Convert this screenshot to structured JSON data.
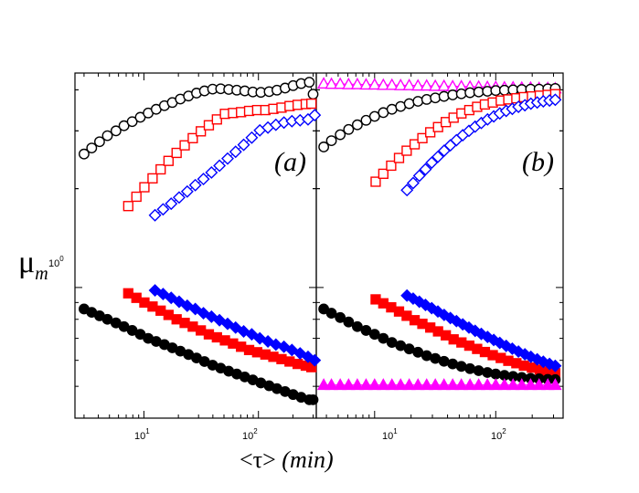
{
  "chart_data": {
    "type": "scatter",
    "y_axis": {
      "scale": "log",
      "ylim": [
        0.4,
        4.5
      ],
      "label_symbol": "μ",
      "label_subscript": "m",
      "tick_label_base": "10",
      "tick_label_exp": "0",
      "tick_value": 1
    },
    "x_axis": {
      "scale": "log",
      "label_open": "<τ>",
      "label_unit": "(min)",
      "tick_label_base": "10",
      "tick_label_exp_1": "1",
      "tick_label_exp_2": "2"
    },
    "panels": [
      {
        "id": "a",
        "label": "(a)",
        "xlim": [
          2.5,
          320
        ],
        "series": [
          {
            "name": "black-open",
            "color": "#000000",
            "marker": "circle",
            "filled": false,
            "line": true,
            "x": [
              3.0,
              3.5,
              4.1,
              4.8,
              5.7,
              6.7,
              7.9,
              9.3,
              10.9,
              12.8,
              15.1,
              17.7,
              20.8,
              24.5,
              28.8,
              33.8,
              39.8,
              46.8,
              55.0,
              64.7,
              76.0,
              89.4,
              105,
              124,
              145,
              171,
              201,
              236,
              278,
              300
            ],
            "y": [
              2.55,
              2.66,
              2.78,
              2.9,
              3.0,
              3.11,
              3.2,
              3.3,
              3.4,
              3.49,
              3.58,
              3.66,
              3.75,
              3.83,
              3.91,
              3.97,
              4.02,
              4.03,
              4.01,
              3.99,
              3.97,
              3.94,
              3.93,
              3.95,
              3.99,
              4.05,
              4.12,
              4.18,
              4.22,
              3.88
            ]
          },
          {
            "name": "red-open",
            "color": "#ff0000",
            "marker": "square",
            "filled": false,
            "line": true,
            "x": [
              7.3,
              8.6,
              10.1,
              11.9,
              14.0,
              16.4,
              19.3,
              22.7,
              26.7,
              31.4,
              36.9,
              43.4,
              51.0,
              60.0,
              70.5,
              82.9,
              97.5,
              115,
              135,
              159,
              187,
              220,
              259,
              290
            ],
            "y": [
              1.77,
              1.89,
              2.02,
              2.15,
              2.29,
              2.43,
              2.57,
              2.71,
              2.85,
              2.99,
              3.12,
              3.25,
              3.38,
              3.4,
              3.42,
              3.45,
              3.47,
              3.47,
              3.5,
              3.53,
              3.57,
              3.6,
              3.62,
              3.63
            ]
          },
          {
            "name": "blue-open",
            "color": "#0000ff",
            "marker": "diamond",
            "filled": false,
            "line": true,
            "x": [
              12.5,
              14.7,
              17.3,
              20.3,
              23.9,
              28.1,
              33.1,
              38.9,
              45.7,
              53.8,
              63.2,
              74.3,
              87.4,
              102.8,
              121,
              142,
              167,
              196,
              231,
              271,
              310
            ],
            "y": [
              1.66,
              1.73,
              1.8,
              1.88,
              1.96,
              2.05,
              2.14,
              2.24,
              2.35,
              2.47,
              2.59,
              2.72,
              2.86,
              3.01,
              3.07,
              3.13,
              3.18,
              3.21,
              3.23,
              3.25,
              3.35
            ]
          },
          {
            "name": "red-filled",
            "color": "#ff0000",
            "marker": "square",
            "filled": true,
            "line": true,
            "x": [
              7.3,
              8.6,
              10.1,
              11.9,
              14.0,
              16.4,
              19.3,
              22.7,
              26.7,
              31.4,
              36.9,
              43.4,
              51.0,
              60.0,
              70.5,
              82.9,
              97.5,
              115,
              135,
              159,
              187,
              220,
              259,
              290
            ],
            "y": [
              0.96,
              0.93,
              0.9,
              0.875,
              0.85,
              0.825,
              0.8,
              0.78,
              0.76,
              0.74,
              0.72,
              0.705,
              0.69,
              0.675,
              0.66,
              0.645,
              0.635,
              0.625,
              0.615,
              0.605,
              0.595,
              0.585,
              0.578,
              0.572
            ]
          },
          {
            "name": "blue-filled",
            "color": "#0000ff",
            "marker": "diamond",
            "filled": true,
            "line": true,
            "x": [
              12.5,
              14.7,
              17.3,
              20.3,
              23.9,
              28.1,
              33.1,
              38.9,
              45.7,
              53.8,
              63.2,
              74.3,
              87.4,
              102.8,
              121,
              142,
              167,
              196,
              231,
              271,
              310
            ],
            "y": [
              0.98,
              0.955,
              0.93,
              0.905,
              0.88,
              0.86,
              0.835,
              0.815,
              0.795,
              0.775,
              0.755,
              0.735,
              0.72,
              0.7,
              0.685,
              0.67,
              0.66,
              0.645,
              0.63,
              0.615,
              0.6
            ]
          },
          {
            "name": "black-filled",
            "color": "#000000",
            "marker": "circle",
            "filled": true,
            "line": true,
            "x": [
              3.0,
              3.5,
              4.1,
              4.8,
              5.7,
              6.7,
              7.9,
              9.3,
              10.9,
              12.8,
              15.1,
              17.7,
              20.8,
              24.5,
              28.8,
              33.8,
              39.8,
              46.8,
              55.0,
              64.7,
              76.0,
              89.4,
              105,
              124,
              145,
              171,
              201,
              236,
              278,
              300
            ],
            "y": [
              0.86,
              0.84,
              0.82,
              0.8,
              0.78,
              0.76,
              0.74,
              0.72,
              0.7,
              0.685,
              0.67,
              0.655,
              0.64,
              0.625,
              0.61,
              0.595,
              0.58,
              0.568,
              0.556,
              0.545,
              0.534,
              0.523,
              0.512,
              0.502,
              0.492,
              0.482,
              0.472,
              0.463,
              0.455,
              0.455
            ]
          }
        ]
      },
      {
        "id": "b",
        "label": "(b)",
        "xlim": [
          3.3,
          360
        ],
        "series": [
          {
            "name": "magenta-open",
            "color": "#ff00ff",
            "marker": "triangle",
            "filled": false,
            "line": true,
            "x": [
              3.8,
              4.4,
              5.2,
              6.1,
              7.2,
              8.5,
              10.0,
              11.8,
              13.9,
              16.4,
              19.3,
              22.8,
              26.9,
              31.7,
              37.4,
              44.1,
              52.0,
              61.3,
              72.3,
              85.3,
              100,
              118,
              139,
              164,
              194,
              228,
              269,
              310
            ],
            "y": [
              4.18,
              4.17,
              4.17,
              4.16,
              4.16,
              4.15,
              4.15,
              4.14,
              4.14,
              4.13,
              4.13,
              4.12,
              4.12,
              4.11,
              4.11,
              4.1,
              4.1,
              4.09,
              4.09,
              4.08,
              4.08,
              4.07,
              4.07,
              4.06,
              4.06,
              4.05,
              4.05,
              4.04
            ]
          },
          {
            "name": "black-open",
            "color": "#000000",
            "marker": "circle",
            "filled": false,
            "line": true,
            "x": [
              3.8,
              4.4,
              5.2,
              6.1,
              7.2,
              8.5,
              10.0,
              11.8,
              13.9,
              16.4,
              19.3,
              22.8,
              26.9,
              31.7,
              37.4,
              44.1,
              52.0,
              61.3,
              72.3,
              85.3,
              100,
              118,
              139,
              164,
              194,
              228,
              269,
              310
            ],
            "y": [
              2.68,
              2.8,
              2.92,
              3.03,
              3.13,
              3.23,
              3.32,
              3.41,
              3.49,
              3.56,
              3.63,
              3.69,
              3.74,
              3.78,
              3.82,
              3.86,
              3.89,
              3.92,
              3.94,
              3.96,
              3.98,
              3.99,
              4.0,
              4.01,
              4.02,
              4.02,
              4.03,
              4.04
            ]
          },
          {
            "name": "red-open",
            "color": "#ff0000",
            "marker": "square",
            "filled": false,
            "line": true,
            "x": [
              10.2,
              11.8,
              13.7,
              15.9,
              18.4,
              21.4,
              24.8,
              28.8,
              33.4,
              38.7,
              44.9,
              52.1,
              60.5,
              70.2,
              81.4,
              94.5,
              110,
              127,
              148,
              171,
              199,
              231,
              268,
              310
            ],
            "y": [
              2.1,
              2.22,
              2.35,
              2.48,
              2.61,
              2.73,
              2.85,
              2.97,
              3.08,
              3.19,
              3.29,
              3.39,
              3.47,
              3.55,
              3.61,
              3.66,
              3.71,
              3.74,
              3.77,
              3.8,
              3.82,
              3.84,
              3.86,
              3.88
            ]
          },
          {
            "name": "blue-open",
            "color": "#0000ff",
            "marker": "diamond",
            "filled": false,
            "line": true,
            "x": [
              18.5,
              20.8,
              23.4,
              26.3,
              29.6,
              33.3,
              37.5,
              42.2,
              47.4,
              53.4,
              60.1,
              67.6,
              76.0,
              85.6,
              96.3,
              108,
              122,
              137,
              154,
              174,
              195,
              220,
              247,
              278,
              310
            ],
            "y": [
              1.98,
              2.08,
              2.19,
              2.29,
              2.4,
              2.5,
              2.61,
              2.71,
              2.81,
              2.91,
              3.0,
              3.09,
              3.17,
              3.25,
              3.32,
              3.39,
              3.45,
              3.5,
              3.55,
              3.59,
              3.63,
              3.66,
              3.69,
              3.71,
              3.73
            ]
          },
          {
            "name": "red-filled",
            "color": "#ff0000",
            "marker": "square",
            "filled": true,
            "line": true,
            "x": [
              10.2,
              11.8,
              13.7,
              15.9,
              18.4,
              21.4,
              24.8,
              28.8,
              33.4,
              38.7,
              44.9,
              52.1,
              60.5,
              70.2,
              81.4,
              94.5,
              110,
              127,
              148,
              171,
              199,
              231,
              268,
              310
            ],
            "y": [
              0.92,
              0.895,
              0.87,
              0.845,
              0.82,
              0.795,
              0.775,
              0.755,
              0.735,
              0.715,
              0.695,
              0.68,
              0.665,
              0.65,
              0.636,
              0.622,
              0.61,
              0.598,
              0.588,
              0.578,
              0.57,
              0.562,
              0.555,
              0.548
            ]
          },
          {
            "name": "blue-filled",
            "color": "#0000ff",
            "marker": "diamond",
            "filled": true,
            "line": true,
            "x": [
              18.5,
              20.8,
              23.4,
              26.3,
              29.6,
              33.3,
              37.5,
              42.2,
              47.4,
              53.4,
              60.1,
              67.6,
              76.0,
              85.6,
              96.3,
              108,
              122,
              137,
              154,
              174,
              195,
              220,
              247,
              278,
              310
            ],
            "y": [
              0.945,
              0.925,
              0.905,
              0.885,
              0.865,
              0.845,
              0.825,
              0.807,
              0.79,
              0.772,
              0.755,
              0.738,
              0.722,
              0.707,
              0.692,
              0.678,
              0.664,
              0.651,
              0.638,
              0.626,
              0.615,
              0.604,
              0.594,
              0.585,
              0.577
            ]
          },
          {
            "name": "black-filled",
            "color": "#000000",
            "marker": "circle",
            "filled": true,
            "line": true,
            "x": [
              3.8,
              4.4,
              5.2,
              6.1,
              7.2,
              8.5,
              10.0,
              11.8,
              13.9,
              16.4,
              19.3,
              22.8,
              26.9,
              31.7,
              37.4,
              44.1,
              52.0,
              61.3,
              72.3,
              85.3,
              100,
              118,
              139,
              164,
              194,
              228,
              269,
              310
            ],
            "y": [
              0.86,
              0.835,
              0.81,
              0.785,
              0.76,
              0.74,
              0.72,
              0.7,
              0.68,
              0.665,
              0.65,
              0.635,
              0.62,
              0.608,
              0.596,
              0.585,
              0.575,
              0.566,
              0.558,
              0.551,
              0.545,
              0.54,
              0.536,
              0.532,
              0.529,
              0.527,
              0.525,
              0.524
            ]
          },
          {
            "name": "magenta-filled",
            "color": "#ff00ff",
            "marker": "triangle",
            "filled": true,
            "line": true,
            "x": [
              3.8,
              4.4,
              5.2,
              6.1,
              7.2,
              8.5,
              10.0,
              11.8,
              13.9,
              16.4,
              19.3,
              22.8,
              26.9,
              31.7,
              37.4,
              44.1,
              52.0,
              61.3,
              72.3,
              85.3,
              100,
              118,
              139,
              164,
              194,
              228,
              269,
              310
            ],
            "y": [
              0.505,
              0.505,
              0.505,
              0.505,
              0.505,
              0.505,
              0.505,
              0.505,
              0.505,
              0.505,
              0.505,
              0.505,
              0.505,
              0.505,
              0.505,
              0.505,
              0.505,
              0.505,
              0.505,
              0.505,
              0.505,
              0.505,
              0.505,
              0.505,
              0.505,
              0.505,
              0.505,
              0.505
            ]
          }
        ]
      }
    ]
  }
}
